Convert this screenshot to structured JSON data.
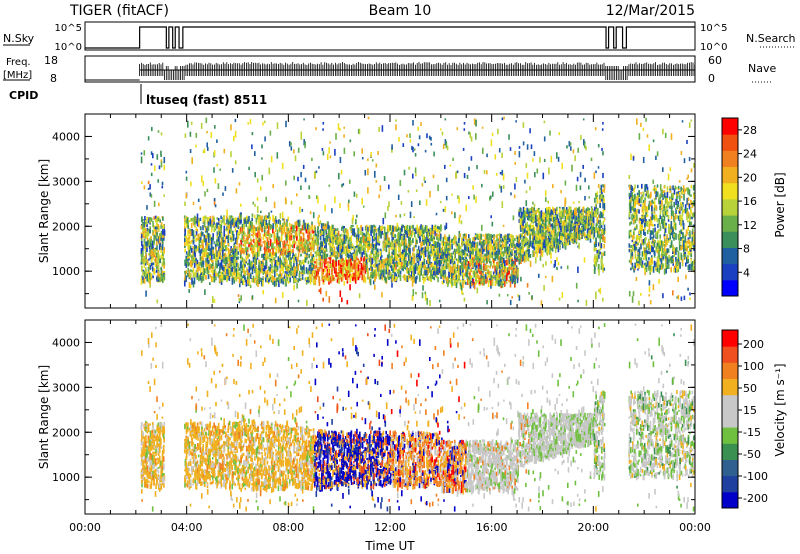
{
  "header": {
    "radar": "TIGER (fitACF)",
    "beam": "Beam 10",
    "date": "12/Mar/2015"
  },
  "strips": {
    "nsky_label": "N.Sky",
    "nsky_ticks": [
      "10^5",
      "10^0"
    ],
    "nsearch_label": "N.Search",
    "nsearch_ticks": [
      "10^5",
      "10^0"
    ],
    "freq_label": "Freq.",
    "freq_unit": "[MHz]",
    "freq_ticks": [
      "18",
      "8"
    ],
    "nave_label": "Nave",
    "nave_ticks": [
      "60",
      "0"
    ],
    "cpid_label": "CPID",
    "cpid_text": "ltuseq (fast) 8511"
  },
  "chart_data": [
    {
      "type": "heatmap",
      "name_shown": "",
      "ylabel": "Slant Range [km]",
      "yticks": [
        1000,
        2000,
        3000,
        4000
      ],
      "ylim": [
        180,
        4500
      ],
      "xlim_hours": [
        0,
        24
      ],
      "colorbar": {
        "label": "Power [dB]",
        "ticks": [
          4,
          8,
          12,
          16,
          20,
          24,
          28
        ],
        "range": [
          0,
          30
        ],
        "colors": [
          "#0000ff",
          "#1a3fc0",
          "#2060a0",
          "#3a8f5a",
          "#6ab04a",
          "#b8d23a",
          "#f0e020",
          "#f0b020",
          "#f08020",
          "#f05010",
          "#ff0000"
        ]
      }
    },
    {
      "type": "heatmap",
      "ylabel": "Slant Range [km]",
      "yticks": [
        1000,
        2000,
        3000,
        4000
      ],
      "ylim": [
        180,
        4500
      ],
      "xlim_hours": [
        0,
        24
      ],
      "xticks": [
        "00:00",
        "04:00",
        "08:00",
        "12:00",
        "16:00",
        "20:00",
        "00:00"
      ],
      "xlabel": "Time UT",
      "colorbar": {
        "label": "Velocity [m s⁻¹]",
        "ticks": [
          200,
          100,
          50,
          15,
          -15,
          -50,
          -100,
          -200
        ],
        "colors": [
          "#0000c8",
          "#2040a0",
          "#306090",
          "#3a9050",
          "#70c040",
          "#c8c8c8",
          "#c8c8c8",
          "#f0b020",
          "#f08020",
          "#f05020",
          "#ff0000"
        ]
      }
    }
  ]
}
